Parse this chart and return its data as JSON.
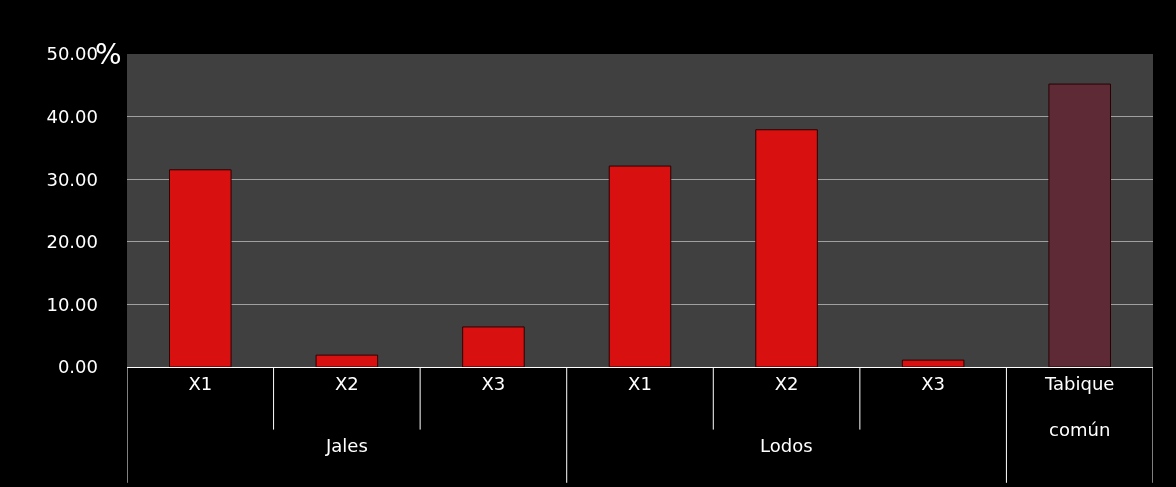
{
  "chart_data": {
    "type": "bar",
    "ylabel": "%",
    "categories": [
      "X1",
      "X2",
      "X3",
      "X1",
      "X2",
      "X3",
      "Tabique común"
    ],
    "values": [
      31.5,
      1.9,
      6.4,
      32.1,
      37.9,
      1.1,
      45.2
    ],
    "colors": [
      "#d81010",
      "#d81010",
      "#d81010",
      "#d81010",
      "#d81010",
      "#d81010",
      "#5e2a36"
    ],
    "ylim": [
      0,
      50
    ],
    "yticks": [
      {
        "value": 0,
        "label": "0.00"
      },
      {
        "value": 10,
        "label": "10.00"
      },
      {
        "value": 20,
        "label": "20.00"
      },
      {
        "value": 30,
        "label": "30.00"
      },
      {
        "value": 40,
        "label": "40.00"
      },
      {
        "value": 50,
        "label": "50.00"
      }
    ],
    "grid": "y",
    "annotations": [
      "Jales",
      "Lodos"
    ]
  }
}
